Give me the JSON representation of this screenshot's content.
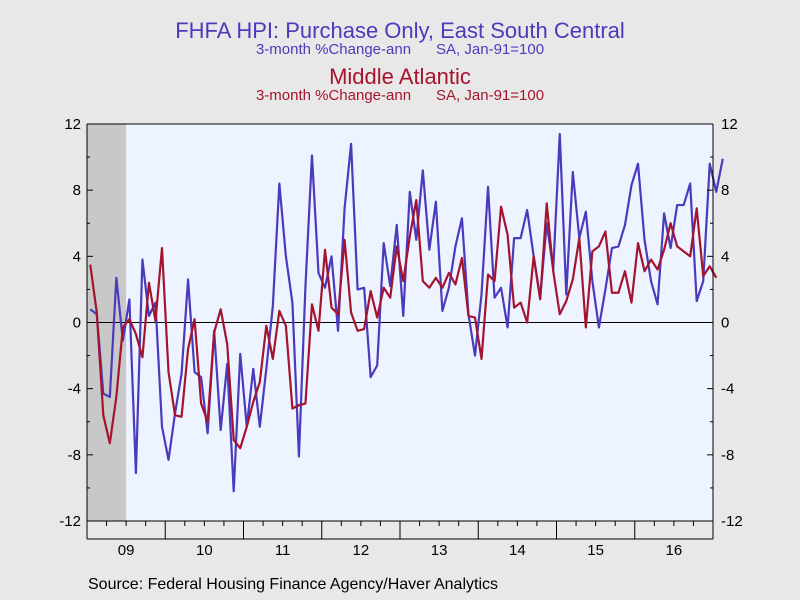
{
  "titles": {
    "line1": "FHFA HPI: Purchase Only, East South Central",
    "line2": "3-month %Change-ann      SA, Jan-91=100",
    "line3": "Middle Atlantic",
    "line4": "3-month %Change-ann      SA, Jan-91=100"
  },
  "source": "Source:  Federal Housing Finance Agency/Haver Analytics",
  "colors": {
    "series1": "#4a3bbd",
    "series2": "#a4142e",
    "plot_bg": "#eef4ff",
    "page_bg": "#e9e8e8",
    "recession": "#c8c8c8"
  },
  "chart_data": {
    "type": "line",
    "ylim": [
      -12,
      12
    ],
    "yticks": [
      -12,
      -8,
      -4,
      0,
      4,
      8,
      12
    ],
    "ytick_labels": [
      "-12",
      "-8",
      "-4",
      "0",
      "4",
      "8",
      "12"
    ],
    "xlim": [
      "2009-01",
      "2016-12"
    ],
    "xtick_labels": [
      "09",
      "10",
      "11",
      "12",
      "13",
      "14",
      "15",
      "16"
    ],
    "recession_band": [
      "2009-01",
      "2009-06"
    ],
    "grid": false,
    "zero_line": true,
    "series": [
      {
        "name": "East South Central",
        "start": "2009-01",
        "values": [
          0.8,
          0.5,
          -4.3,
          -4.5,
          2.7,
          -1.1,
          1.4,
          -9.1,
          3.8,
          0.4,
          1.2,
          -6.3,
          -8.3,
          -5.5,
          -3.1,
          2.6,
          -3.0,
          -3.3,
          -6.7,
          -0.5,
          -6.5,
          -2.5,
          -10.2,
          -1.9,
          -6.3,
          -2.8,
          -6.3,
          -2.8,
          1.0,
          8.4,
          4.0,
          1.2,
          -8.1,
          2.2,
          10.1,
          3.0,
          2.1,
          4.0,
          -0.5,
          6.9,
          10.8,
          2.0,
          2.1,
          -3.3,
          -2.6,
          4.8,
          2.2,
          5.9,
          0.4,
          7.9,
          5.0,
          9.2,
          4.4,
          7.3,
          0.7,
          2.1,
          4.6,
          6.3,
          0.5,
          -2.0,
          1.7,
          8.2,
          1.5,
          2.1,
          -0.3,
          5.1,
          5.1,
          6.8,
          4.0,
          1.5,
          6.0,
          3.2,
          11.4,
          1.7,
          9.1,
          5.1,
          6.7,
          2.5,
          -0.3,
          2.0,
          4.5,
          4.6,
          5.9,
          8.3,
          9.6,
          5.0,
          2.5,
          1.1,
          6.6,
          4.5,
          7.1,
          7.1,
          8.4,
          1.3,
          2.5,
          9.6,
          7.9,
          9.9
        ]
      },
      {
        "name": "Middle Atlantic",
        "start": "2009-01",
        "values": [
          3.5,
          0.6,
          -5.6,
          -7.3,
          -4.5,
          -0.3,
          0.2,
          -0.7,
          -2.1,
          2.4,
          0.1,
          4.5,
          -3.0,
          -5.6,
          -5.7,
          -1.6,
          0.2,
          -4.9,
          -6.0,
          -0.6,
          0.8,
          -1.3,
          -7.1,
          -7.6,
          -6.3,
          -4.8,
          -3.6,
          -0.2,
          -2.2,
          0.7,
          -0.2,
          -5.2,
          -5.0,
          -4.9,
          1.1,
          -0.5,
          4.4,
          0.9,
          0.5,
          5.0,
          0.6,
          -0.5,
          -0.4,
          1.9,
          0.3,
          2.1,
          1.5,
          4.6,
          2.5,
          5.2,
          7.4,
          2.5,
          2.1,
          2.7,
          2.1,
          3.0,
          2.3,
          3.9,
          0.4,
          0.3,
          -2.2,
          2.9,
          2.5,
          7.0,
          5.3,
          0.9,
          1.2,
          0.0,
          4.0,
          1.4,
          7.2,
          3.1,
          0.5,
          1.3,
          2.6,
          5.1,
          -0.3,
          4.3,
          4.6,
          5.5,
          1.8,
          1.8,
          3.1,
          1.2,
          4.8,
          3.1,
          3.8,
          3.2,
          4.4,
          6.0,
          4.6,
          4.3,
          4.0,
          6.9,
          2.8,
          3.4,
          2.7
        ]
      }
    ]
  }
}
